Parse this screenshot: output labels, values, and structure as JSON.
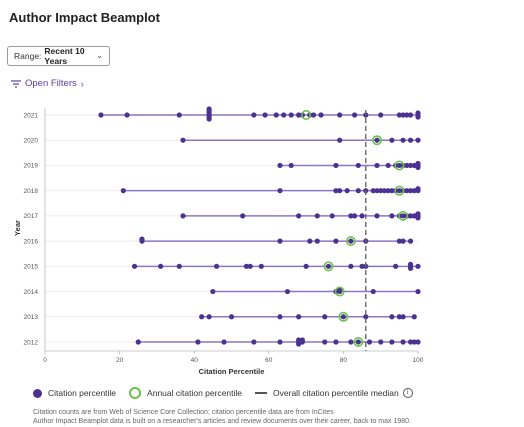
{
  "page": {
    "title": "Author Impact Beamplot",
    "range_label": "Range:",
    "range_value": "Recent 10 Years",
    "filters_label": "Open Filters",
    "legend": {
      "citation": "Citation percentile",
      "annual": "Annual citation percentile",
      "median": "Overall citation percentile median",
      "info_glyph": "i"
    },
    "note_line1": "Citation counts are from Web of Science Core Collection; citation percentile data are from InCites",
    "note_line2": "Author Impact Beamplot data is built on a researcher's articles and review documents over their career, back to max 1980."
  },
  "chart_data": {
    "type": "scatter",
    "xlabel": "Citation Percentile",
    "ylabel": "Year",
    "xlim": [
      0,
      100
    ],
    "x_ticks": [
      0,
      20,
      40,
      60,
      80,
      100
    ],
    "median": 86,
    "colors": {
      "point": "#4b3290",
      "beam": "#8a76c6",
      "annual": "#6cc24a",
      "median": "#666666",
      "grid": "#e6e6e6"
    },
    "years": [
      {
        "year": "2021",
        "annual": 70,
        "points": [
          15,
          22,
          36,
          44,
          44,
          44,
          44,
          44,
          44,
          56,
          59,
          62,
          64,
          66,
          68,
          69,
          71,
          72,
          74,
          79,
          83,
          86,
          90,
          95,
          96,
          97,
          98,
          100,
          100,
          100
        ]
      },
      {
        "year": "2020",
        "annual": 89,
        "points": [
          37,
          79,
          89,
          93,
          96,
          98,
          100
        ]
      },
      {
        "year": "2019",
        "annual": 95,
        "points": [
          63,
          66,
          78,
          84,
          89,
          92,
          94,
          95,
          96,
          97,
          98,
          99,
          100,
          100,
          100
        ]
      },
      {
        "year": "2018",
        "annual": 95,
        "points": [
          21,
          63,
          78,
          79,
          81,
          84,
          86,
          88,
          89,
          90,
          91,
          92,
          93,
          94,
          95,
          96,
          97,
          98,
          99,
          100,
          100
        ]
      },
      {
        "year": "2017",
        "annual": 96,
        "points": [
          37,
          53,
          68,
          73,
          77,
          82,
          83,
          85,
          89,
          93,
          95,
          96,
          97,
          98,
          99,
          100,
          100,
          100
        ]
      },
      {
        "year": "2016",
        "annual": 82,
        "points": [
          26,
          26,
          63,
          71,
          73,
          78,
          82,
          86,
          95,
          96,
          98
        ]
      },
      {
        "year": "2015",
        "annual": 76,
        "points": [
          24,
          31,
          36,
          46,
          54,
          55,
          58,
          70,
          76,
          82,
          85,
          86,
          94,
          98,
          98,
          98,
          100
        ]
      },
      {
        "year": "2014",
        "annual": 79,
        "points": [
          45,
          65,
          78,
          79,
          79,
          88,
          100
        ]
      },
      {
        "year": "2013",
        "annual": 80,
        "points": [
          42,
          44,
          50,
          63,
          68,
          75,
          80,
          86,
          93,
          95,
          96,
          99
        ]
      },
      {
        "year": "2012",
        "annual": 84,
        "points": [
          25,
          41,
          48,
          56,
          63,
          68,
          68,
          68,
          69,
          69,
          75,
          78,
          82,
          84,
          87,
          90,
          93,
          96,
          98,
          99,
          100
        ]
      }
    ]
  }
}
